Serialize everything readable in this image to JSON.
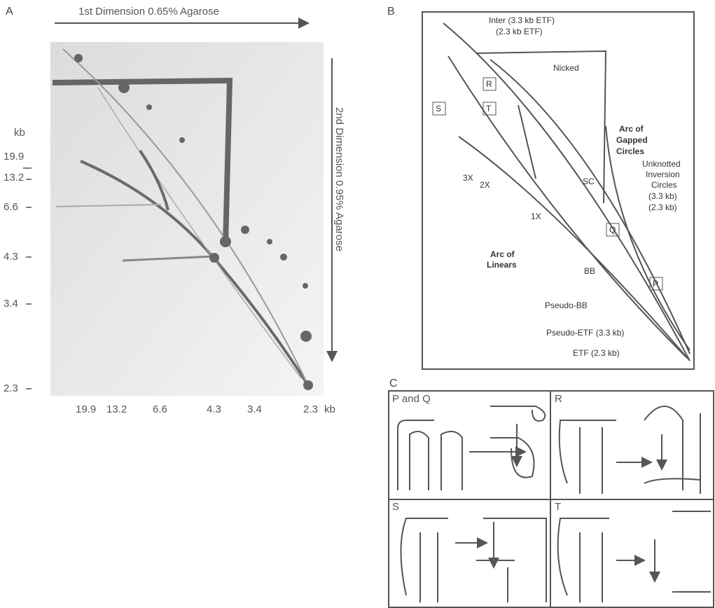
{
  "panel_a": {
    "label": "A",
    "x_axis_title": "1st Dimension 0.65% Agarose",
    "y_axis_title": "2nd Dimension 0.95% Agarose",
    "y_unit": "kb",
    "y_labels": [
      "19.9",
      "13.2",
      "6.6",
      "4.3",
      "3.4",
      "2.3"
    ],
    "x_labels": [
      "19.9",
      "13.2",
      "6.6",
      "4.3",
      "3.4",
      "2.3"
    ],
    "x_unit": "kb"
  },
  "panel_b": {
    "label": "B",
    "inter": "Inter (3.3 kb ETF)",
    "inter_23": "(2.3 kb ETF)",
    "nicked": "Nicked",
    "r": "R",
    "s": "S",
    "t": "T",
    "arc_gapped": [
      "Arc of",
      "Gapped",
      "Circles"
    ],
    "x3": "3X",
    "x2": "2X",
    "x1": "1X",
    "sc": "SC",
    "unknotted": [
      "Unknotted",
      "Inversion",
      "Circles",
      "(3.3 kb)",
      "(2.3 kb)"
    ],
    "q": "Q",
    "arc_linears": [
      "Arc of",
      "Linears"
    ],
    "bb": "BB",
    "p": "P",
    "pseudo_bb": "Pseudo-BB",
    "pseudo_etf": "Pseudo-ETF (3.3 kb)",
    "etf": "ETF (2.3 kb)"
  },
  "panel_c": {
    "label": "C",
    "pq": "P and Q",
    "r": "R",
    "s": "S",
    "t": "T"
  }
}
